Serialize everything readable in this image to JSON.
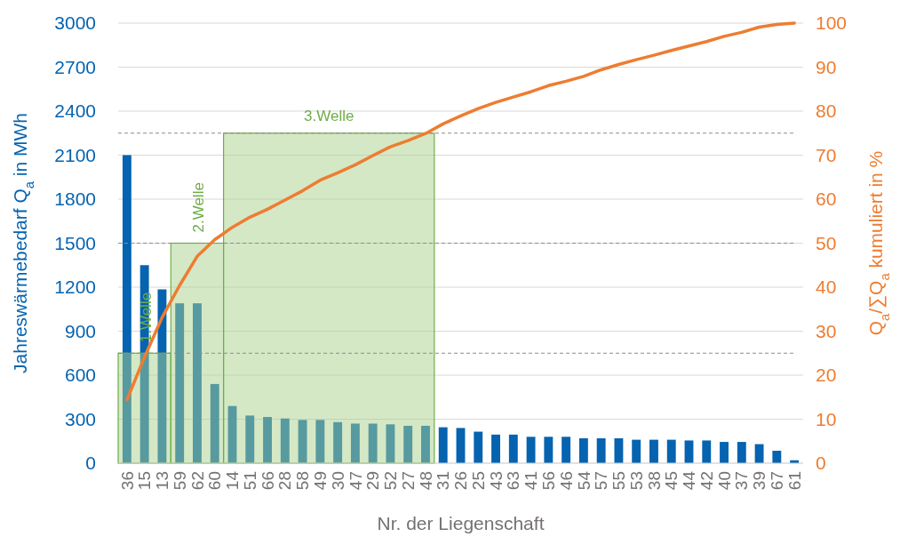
{
  "chart_data": {
    "type": "bar",
    "xlabel": "Nr. der Liegenschaft",
    "ylabel": "Jahreswärmebedarf Q$_{a}$ in MWh",
    "y2label": "Q$_{a}$/∑Q$_{a}$ kumuliert in %",
    "categories": [
      "36",
      "15",
      "13",
      "59",
      "62",
      "60",
      "14",
      "51",
      "66",
      "28",
      "58",
      "49",
      "30",
      "47",
      "29",
      "52",
      "27",
      "48",
      "31",
      "26",
      "25",
      "43",
      "63",
      "41",
      "56",
      "46",
      "54",
      "57",
      "55",
      "53",
      "38",
      "45",
      "44",
      "42",
      "40",
      "37",
      "39",
      "67",
      "61"
    ],
    "series": [
      {
        "color": "#0563b0",
        "values": [
          2100,
          1350,
          1185,
          1090,
          1090,
          540,
          390,
          325,
          315,
          305,
          295,
          295,
          280,
          270,
          270,
          265,
          255,
          255,
          245,
          240,
          215,
          195,
          195,
          180,
          180,
          180,
          170,
          170,
          170,
          160,
          160,
          160,
          155,
          155,
          145,
          145,
          130,
          85,
          20
        ]
      },
      {
        "type": "line",
        "axis": "y2",
        "color": "#ed7d31",
        "values": [
          14.4,
          24.1,
          33.1,
          40.4,
          47.0,
          50.8,
          53.6,
          55.9,
          57.7,
          59.8,
          61.9,
          64.3,
          66.0,
          67.8,
          69.9,
          71.9,
          73.3,
          74.9,
          77.1,
          78.9,
          80.6,
          82.0,
          83.2,
          84.4,
          85.8,
          86.8,
          87.9,
          89.4,
          90.6,
          91.7,
          92.7,
          93.8,
          94.8,
          95.8,
          97.0,
          97.9,
          99.1,
          99.7,
          100
        ]
      }
    ],
    "ylim": [
      0,
      3000
    ],
    "yticks": [
      0,
      300,
      600,
      900,
      1200,
      1500,
      1800,
      2100,
      2400,
      2700,
      3000
    ],
    "y2lim": [
      0,
      100
    ],
    "y2ticks": [
      0,
      10,
      20,
      30,
      40,
      50,
      60,
      70,
      80,
      90,
      100
    ],
    "grid": "y",
    "marker": "none",
    "ref_lines": [
      {
        "axis": "y2",
        "value": 25,
        "color": "#8c8c8c",
        "line_style": "dashed"
      },
      {
        "axis": "y2",
        "value": 50,
        "color": "#8c8c8c",
        "line_style": "dashed"
      },
      {
        "axis": "y2",
        "value": 75,
        "color": "#8c8c8c",
        "line_style": "dashed"
      }
    ],
    "bands": [
      {
        "axis": "x",
        "from": "36",
        "to": "13",
        "label": "1.Welle",
        "color": "#a9d18e"
      },
      {
        "axis": "x",
        "from": "59",
        "to": "60",
        "label": "2.Welle",
        "color": "#a9d18e"
      },
      {
        "axis": "x",
        "from": "14",
        "to": "48",
        "label": "3.Welle",
        "color": "#a9d18e"
      }
    ]
  }
}
